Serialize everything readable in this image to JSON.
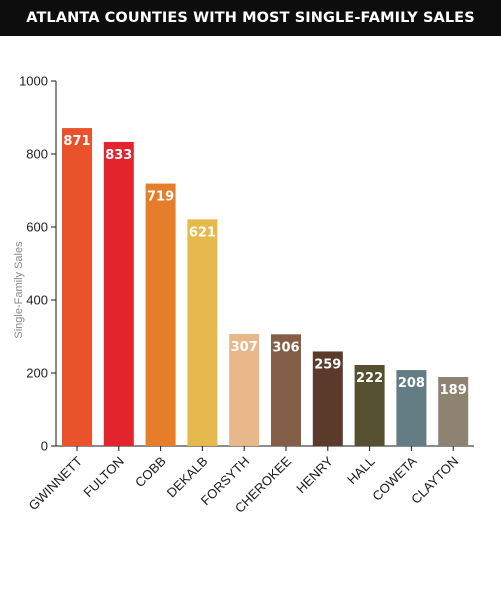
{
  "chart_data": {
    "type": "bar",
    "title": "ATLANTA COUNTIES WITH MOST SINGLE-FAMILY SALES",
    "xlabel": "",
    "ylabel": "Single-Family Sales",
    "categories": [
      "GWINNETT",
      "FULTON",
      "COBB",
      "DEKALB",
      "FORSYTH",
      "CHEROKEE",
      "HENRY",
      "HALL",
      "COWETA",
      "CLAYTON"
    ],
    "values": [
      871,
      833,
      719,
      621,
      307,
      306,
      259,
      222,
      208,
      189
    ],
    "colors": [
      "#e9522b",
      "#e3242d",
      "#e67d2a",
      "#e6b94d",
      "#e8b88a",
      "#855e48",
      "#5b3a2c",
      "#555030",
      "#647c84",
      "#8e8371"
    ],
    "ylim": [
      0,
      1000
    ],
    "yticks": [
      0,
      200,
      400,
      600,
      800,
      1000
    ],
    "grid": false,
    "legend": "none"
  }
}
